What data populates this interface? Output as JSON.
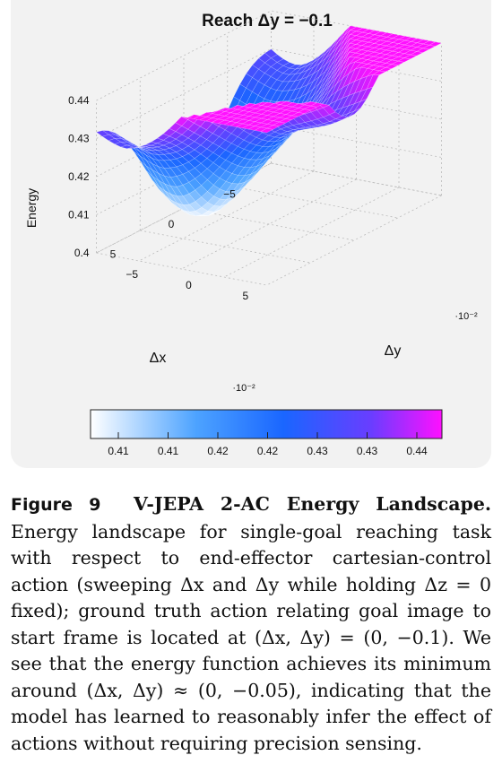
{
  "chart_data": {
    "type": "surface3d",
    "title": "Reach Δy = −0.1",
    "xlabel": "Δx",
    "ylabel": "Δy",
    "zlabel": "Energy",
    "x_ticks": [
      "−5",
      "0",
      "5"
    ],
    "x_multiplier": "·10⁻²",
    "y_ticks": [
      "−5",
      "0",
      "5"
    ],
    "y_multiplier": "·10⁻²",
    "z_ticks": [
      "0.4",
      "0.41",
      "0.42",
      "0.43",
      "0.44"
    ],
    "xlim": [
      -0.075,
      0.075
    ],
    "ylim": [
      -0.075,
      0.075
    ],
    "zlim": [
      0.4,
      0.44
    ],
    "minimum": {
      "x": 0.0,
      "y": -0.05,
      "z": 0.402
    },
    "grid": true,
    "colorbar": {
      "ticks": [
        "0.41",
        "0.41",
        "0.42",
        "0.42",
        "0.43",
        "0.43",
        "0.44"
      ],
      "colors": [
        "#ffffff",
        "#4da3ff",
        "#1a66ff",
        "#6a3dff",
        "#ff10ff"
      ]
    }
  },
  "caption": {
    "label": "Figure 9",
    "title": "V-JEPA 2-AC Energy Landscape.",
    "text": "Energy landscape for single-goal reaching task with respect to end-effector cartesian-control action (sweeping Δx and Δy while holding Δz = 0 fixed); ground truth action relating goal image to start frame is located at (Δx, Δy) = (0, −0.1). We see that the energy function achieves its minimum around (Δx, Δy) ≈ (0, −0.05), indicating that the model has learned to reasonably infer the effect of actions without requiring precision sensing."
  }
}
